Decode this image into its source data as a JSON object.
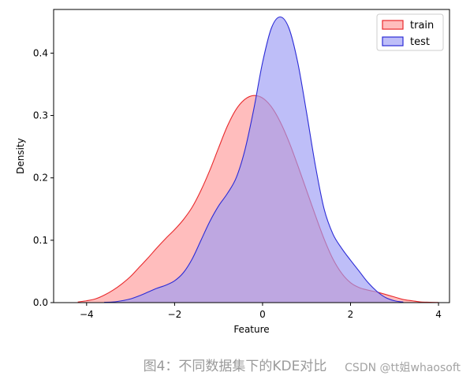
{
  "chart_data": {
    "type": "area",
    "title": "",
    "xlabel": "Feature",
    "ylabel": "Density",
    "xlim": [
      -4.75,
      4.25
    ],
    "ylim": [
      0,
      0.47
    ],
    "xticks": [
      -4,
      -2,
      0,
      2,
      4
    ],
    "yticks": [
      0.0,
      0.1,
      0.2,
      0.3,
      0.4
    ],
    "grid": false,
    "legend_position": "top-right",
    "series": [
      {
        "name": "train",
        "color": "#e8292c",
        "fill": "#ff9999",
        "x": [
          -4.2,
          -4.0,
          -3.8,
          -3.6,
          -3.4,
          -3.2,
          -3.0,
          -2.8,
          -2.6,
          -2.4,
          -2.2,
          -2.0,
          -1.8,
          -1.6,
          -1.4,
          -1.2,
          -1.0,
          -0.8,
          -0.6,
          -0.4,
          -0.2,
          0.0,
          0.2,
          0.4,
          0.6,
          0.8,
          1.0,
          1.2,
          1.4,
          1.6,
          1.8,
          2.0,
          2.2,
          2.4,
          2.6,
          2.8,
          3.0,
          3.2,
          3.4,
          3.6,
          3.8,
          4.0
        ],
        "y": [
          0.001,
          0.003,
          0.006,
          0.012,
          0.02,
          0.03,
          0.042,
          0.057,
          0.072,
          0.088,
          0.103,
          0.117,
          0.133,
          0.153,
          0.18,
          0.212,
          0.248,
          0.283,
          0.31,
          0.326,
          0.332,
          0.328,
          0.314,
          0.29,
          0.258,
          0.22,
          0.18,
          0.14,
          0.102,
          0.07,
          0.047,
          0.032,
          0.024,
          0.02,
          0.017,
          0.013,
          0.009,
          0.005,
          0.003,
          0.001,
          0.0006,
          0.0003
        ]
      },
      {
        "name": "test",
        "color": "#2b2bd6",
        "fill": "#9b9bf5",
        "x": [
          -3.6,
          -3.4,
          -3.2,
          -3.0,
          -2.8,
          -2.6,
          -2.4,
          -2.2,
          -2.0,
          -1.8,
          -1.6,
          -1.4,
          -1.2,
          -1.0,
          -0.8,
          -0.6,
          -0.4,
          -0.2,
          0.0,
          0.2,
          0.4,
          0.6,
          0.8,
          1.0,
          1.2,
          1.4,
          1.6,
          1.8,
          2.0,
          2.2,
          2.4,
          2.6,
          2.8,
          3.0,
          3.2
        ],
        "y": [
          0.0005,
          0.001,
          0.003,
          0.006,
          0.011,
          0.017,
          0.023,
          0.028,
          0.035,
          0.048,
          0.07,
          0.1,
          0.13,
          0.155,
          0.175,
          0.2,
          0.245,
          0.31,
          0.385,
          0.44,
          0.458,
          0.44,
          0.385,
          0.305,
          0.22,
          0.15,
          0.11,
          0.087,
          0.068,
          0.05,
          0.032,
          0.018,
          0.008,
          0.003,
          0.0008
        ]
      }
    ]
  },
  "caption": "图4：不同数据集下的KDE对比",
  "watermark": "CSDN @tt姐whaosoft"
}
